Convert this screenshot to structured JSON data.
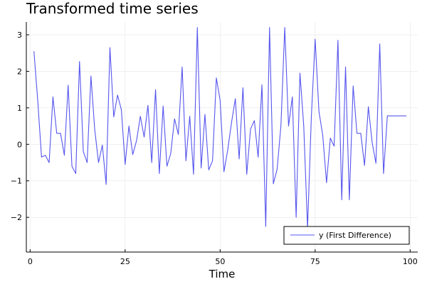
{
  "chart_data": {
    "type": "line",
    "title": "Transformed time series",
    "xlabel": "Time",
    "ylabel": "",
    "xlim": [
      -1,
      102
    ],
    "ylim": [
      -2.95,
      3.35
    ],
    "xticks": [
      0,
      25,
      50,
      75,
      100
    ],
    "yticks": [
      -2,
      -1,
      0,
      1,
      2,
      3
    ],
    "xtick_labels": [
      "0",
      "25",
      "50",
      "75",
      "100"
    ],
    "ytick_labels": [
      "−2",
      "−1",
      "0",
      "1",
      "2",
      "3"
    ],
    "grid": true,
    "legend_position": "bottom-right",
    "series": [
      {
        "name": "y (First Difference)",
        "color": "#5555ee",
        "x": [
          1,
          2,
          3,
          4,
          5,
          6,
          7,
          8,
          9,
          10,
          11,
          12,
          13,
          14,
          15,
          16,
          17,
          18,
          19,
          20,
          21,
          22,
          23,
          24,
          25,
          26,
          27,
          28,
          29,
          30,
          31,
          32,
          33,
          34,
          35,
          36,
          37,
          38,
          39,
          40,
          41,
          42,
          43,
          44,
          45,
          46,
          47,
          48,
          49,
          50,
          51,
          52,
          53,
          54,
          55,
          56,
          57,
          58,
          59,
          60,
          61,
          62,
          63,
          64,
          65,
          66,
          67,
          68,
          69,
          70,
          71,
          72,
          73,
          74,
          75,
          76,
          77,
          78,
          79,
          80,
          81,
          82,
          83,
          84,
          85,
          86,
          87,
          88,
          89,
          90,
          91,
          92,
          93,
          94,
          95,
          96,
          97,
          98,
          99
        ],
        "values": [
          2.55,
          1.2,
          -0.35,
          -0.3,
          -0.5,
          1.3,
          0.3,
          0.3,
          -0.3,
          1.62,
          -0.6,
          -0.8,
          2.27,
          -0.2,
          -0.5,
          1.87,
          0.4,
          -0.5,
          -0.02,
          -1.1,
          2.65,
          0.75,
          1.35,
          0.95,
          -0.55,
          0.5,
          -0.28,
          0.1,
          0.77,
          0.2,
          1.07,
          -0.5,
          1.5,
          -0.8,
          1.05,
          -0.6,
          -0.25,
          0.7,
          0.27,
          2.12,
          -0.45,
          0.77,
          -0.82,
          3.2,
          -0.65,
          0.82,
          -0.7,
          -0.45,
          1.82,
          1.2,
          -0.75,
          -0.15,
          0.6,
          1.25,
          -0.4,
          1.55,
          -0.82,
          0.42,
          0.65,
          -0.35,
          1.63,
          -2.25,
          3.2,
          -1.08,
          -0.68,
          0.52,
          3.2,
          0.5,
          1.3,
          -2.0,
          1.95,
          0.5,
          -2.3,
          0.75,
          2.88,
          0.9,
          0.25,
          -1.05,
          0.17,
          -0.05,
          2.85,
          -1.52,
          2.12,
          -1.52,
          1.6,
          0.3,
          0.3,
          -0.58,
          1.03,
          0.05,
          -0.52,
          2.75,
          -0.8,
          0.78,
          0.78,
          0.78,
          0.78,
          0.78,
          0.78
        ]
      }
    ]
  }
}
